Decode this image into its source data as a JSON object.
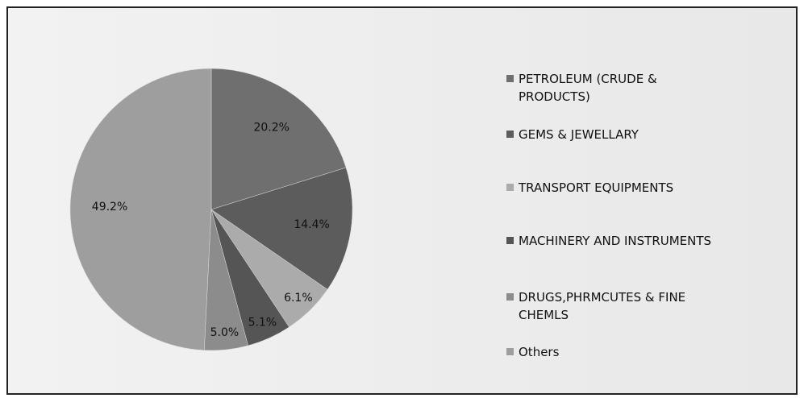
{
  "chart_data": {
    "type": "pie",
    "categories": [
      "PETROLEUM (CRUDE & PRODUCTS)",
      "GEMS & JEWELLARY",
      "TRANSPORT EQUIPMENTS",
      "MACHINERY AND INSTRUMENTS",
      "DRUGS,PHRMCUTES & FINE CHEMLS",
      "Others"
    ],
    "values": [
      20.2,
      14.4,
      6.1,
      5.1,
      5.0,
      49.2
    ],
    "value_labels": [
      "20.2%",
      "14.4%",
      "6.1%",
      "5.1%",
      "5.0%",
      "49.2%"
    ],
    "colors": [
      "#6f6f6f",
      "#5c5c5c",
      "#ababab",
      "#555555",
      "#8c8c8c",
      "#9e9e9e"
    ],
    "legend": "right"
  }
}
